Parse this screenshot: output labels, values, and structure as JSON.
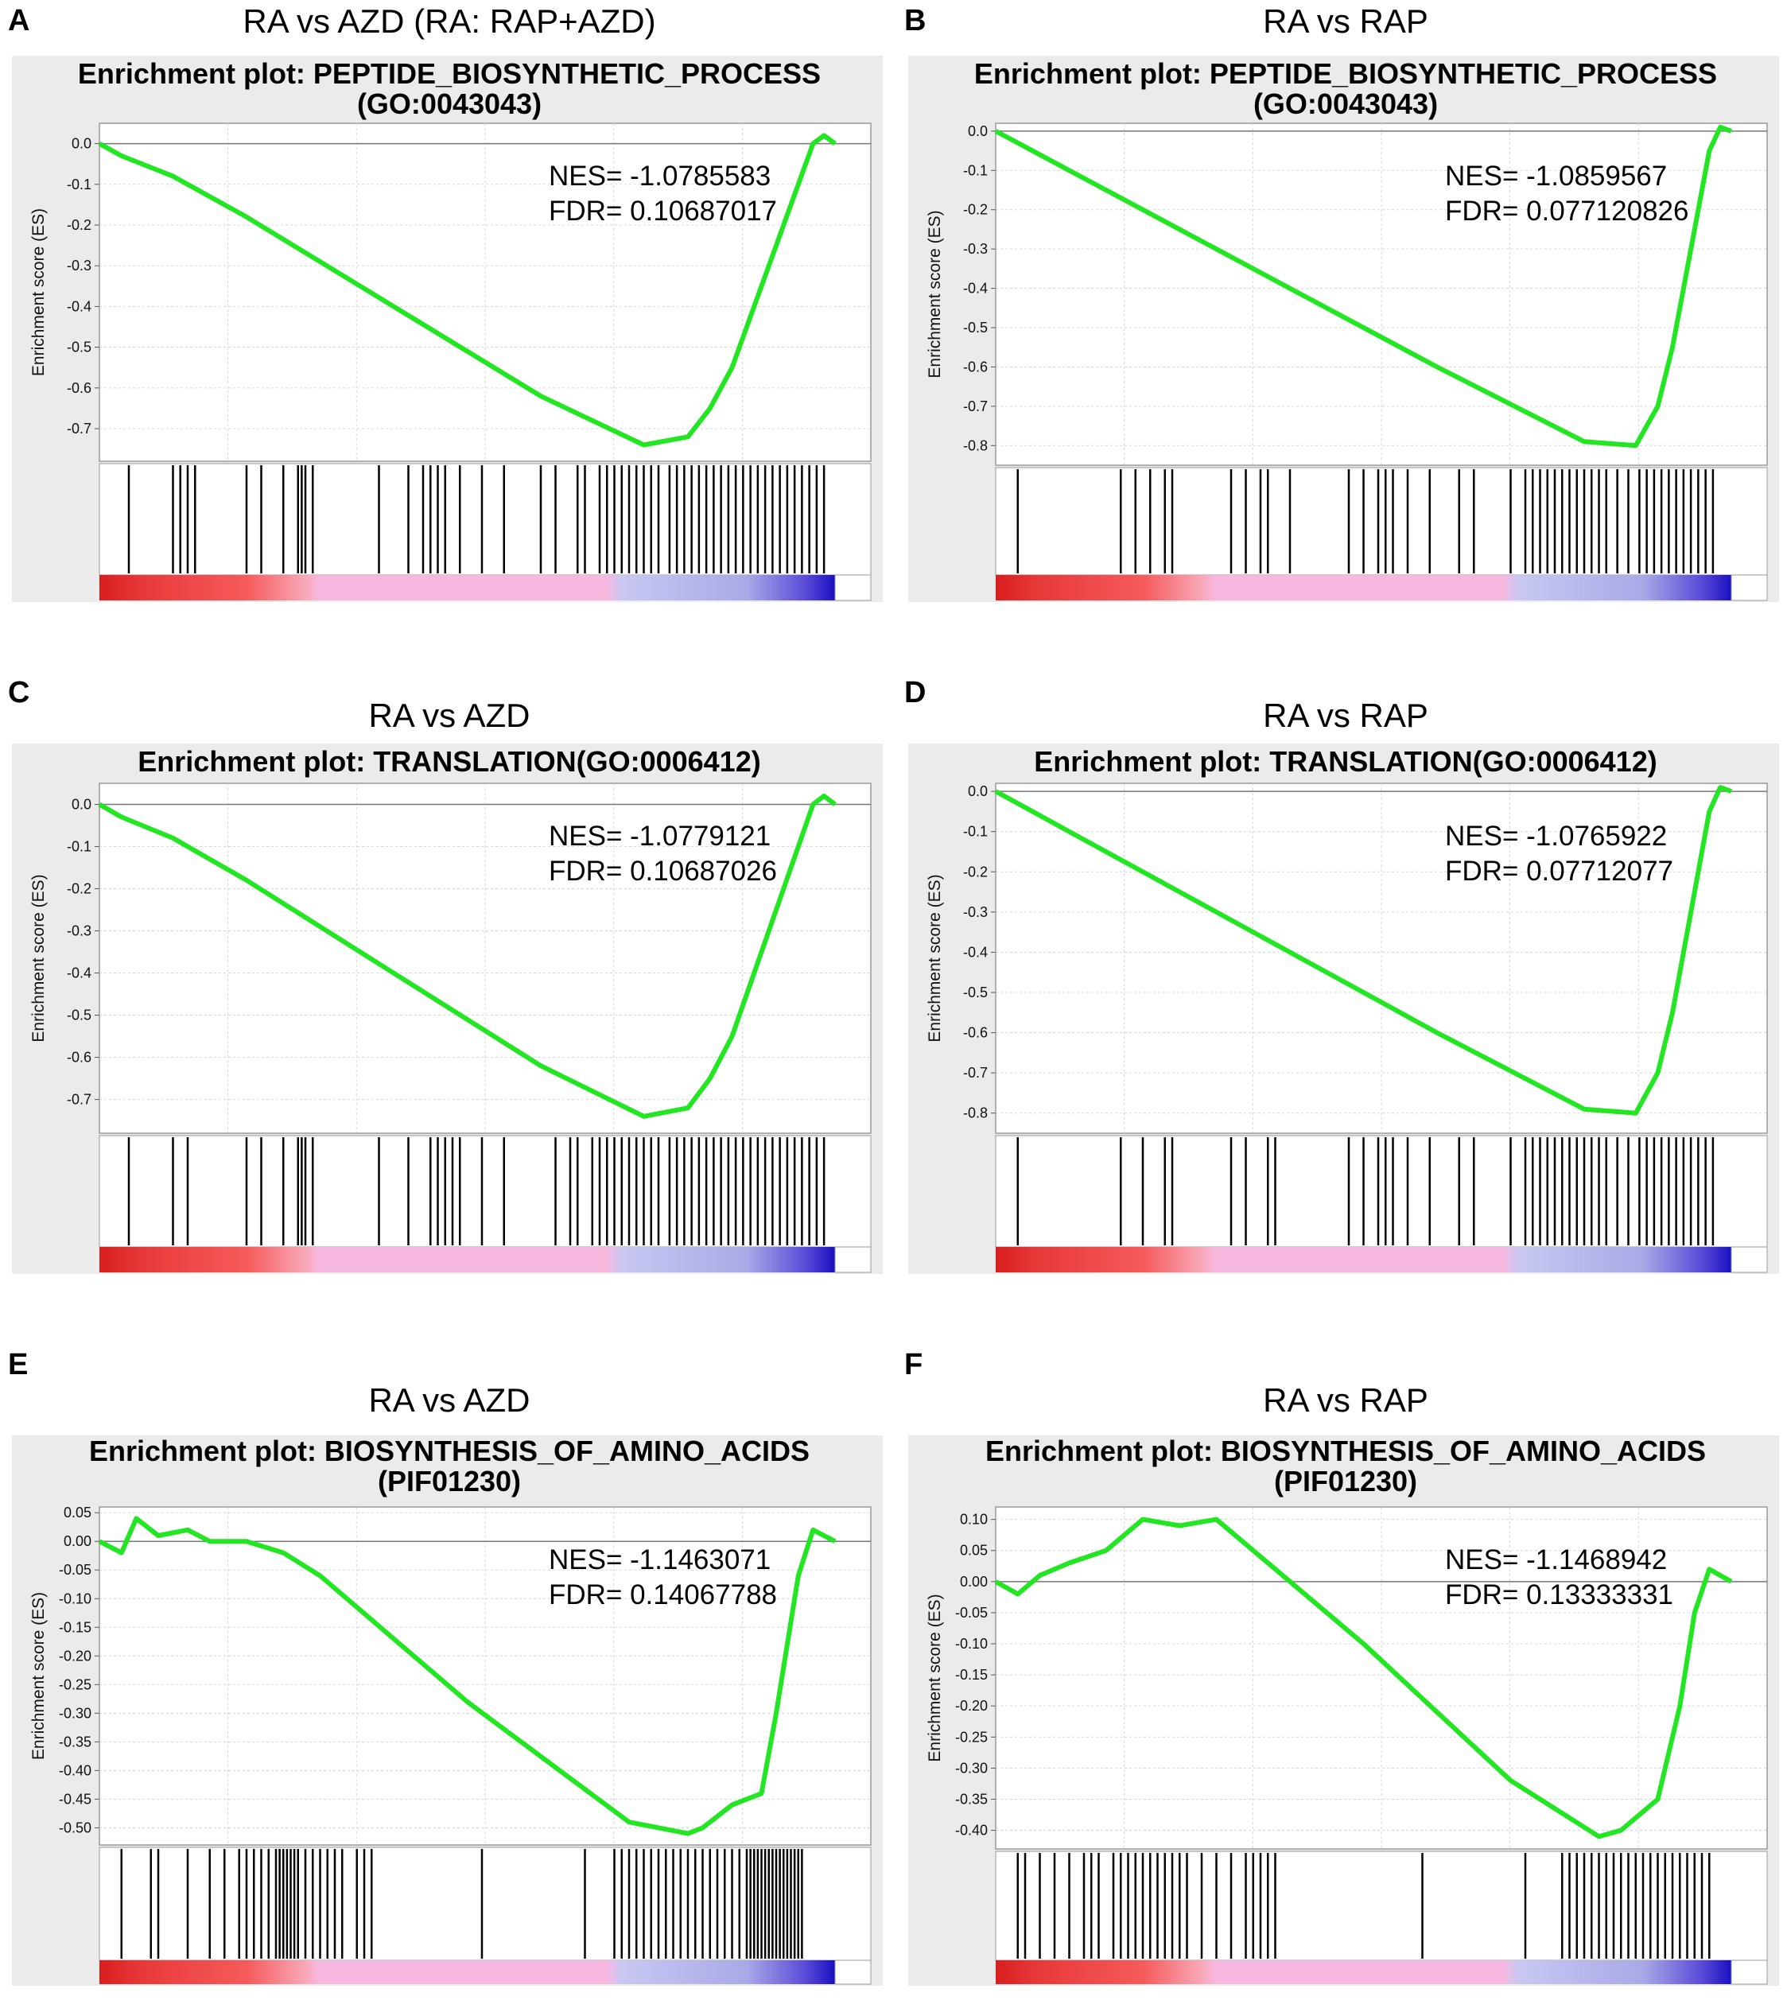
{
  "colors": {
    "curve": "#22e622",
    "bg": "#ebebeb",
    "grid": "#d7d7d7",
    "hit": "#000000"
  },
  "panels": [
    {
      "id": "A",
      "heading": "RA vs AZD  (RA: RAP+AZD)",
      "title_lines": [
        "Enrichment plot: PEPTIDE_BIOSYNTHETIC_PROCESS",
        "(GO:0043043)"
      ],
      "nes": "NES= -1.0785583",
      "fdr": "FDR= 0.10687017"
    },
    {
      "id": "B",
      "heading": "RA vs RAP",
      "title_lines": [
        "Enrichment plot: PEPTIDE_BIOSYNTHETIC_PROCESS",
        "(GO:0043043)"
      ],
      "nes": "NES= -1.0859567",
      "fdr": "FDR= 0.077120826"
    },
    {
      "id": "C",
      "heading": "RA vs AZD",
      "title_lines": [
        "Enrichment plot: TRANSLATION(GO:0006412)"
      ],
      "nes": "NES= -1.0779121",
      "fdr": "FDR= 0.10687026"
    },
    {
      "id": "D",
      "heading": "RA vs RAP",
      "title_lines": [
        "Enrichment plot: TRANSLATION(GO:0006412)"
      ],
      "nes": "NES= -1.0765922",
      "fdr": "FDR= 0.07712077"
    },
    {
      "id": "E",
      "heading": "RA vs AZD",
      "title_lines": [
        "Enrichment plot: BIOSYNTHESIS_OF_AMINO_ACIDS",
        "(PIF01230)"
      ],
      "nes": "NES= -1.1463071",
      "fdr": "FDR= 0.14067788"
    },
    {
      "id": "F",
      "heading": "RA vs RAP",
      "title_lines": [
        "Enrichment plot: BIOSYNTHESIS_OF_AMINO_ACIDS",
        "(PIF01230)"
      ],
      "nes": "NES= -1.1468942",
      "fdr": "FDR= 0.13333331"
    }
  ],
  "chart_data": [
    {
      "panel": "A",
      "type": "line",
      "ylabel": "Enrichment score (ES)",
      "yticks": [
        "0.0",
        "-0.1",
        "-0.2",
        "-0.3",
        "-0.4",
        "-0.5",
        "-0.6",
        "-0.7"
      ],
      "ylim": [
        -0.78,
        0.05
      ],
      "x": [
        0,
        0.03,
        0.1,
        0.2,
        0.4,
        0.6,
        0.74,
        0.8,
        0.83,
        0.86,
        0.9,
        0.95,
        0.97,
        0.985,
        1.0
      ],
      "y": [
        0,
        -0.03,
        -0.08,
        -0.18,
        -0.4,
        -0.62,
        -0.74,
        -0.72,
        -0.65,
        -0.55,
        -0.35,
        -0.1,
        0.0,
        0.02,
        0.0
      ],
      "hits": [
        0.04,
        0.1,
        0.11,
        0.12,
        0.13,
        0.2,
        0.22,
        0.25,
        0.27,
        0.275,
        0.28,
        0.29,
        0.38,
        0.42,
        0.44,
        0.45,
        0.46,
        0.47,
        0.49,
        0.52,
        0.55,
        0.6,
        0.62,
        0.65,
        0.66,
        0.68,
        0.69,
        0.7,
        0.71,
        0.72,
        0.73,
        0.74,
        0.75,
        0.76,
        0.775,
        0.785,
        0.795,
        0.805,
        0.815,
        0.825,
        0.835,
        0.845,
        0.855,
        0.865,
        0.875,
        0.885,
        0.895,
        0.905,
        0.915,
        0.925,
        0.935,
        0.945,
        0.955,
        0.965,
        0.975,
        0.985
      ]
    },
    {
      "panel": "B",
      "type": "line",
      "ylabel": "Enrichment score (ES)",
      "yticks": [
        "0.0",
        "-0.1",
        "-0.2",
        "-0.3",
        "-0.4",
        "-0.5",
        "-0.6",
        "-0.7",
        "-0.8"
      ],
      "ylim": [
        -0.85,
        0.02
      ],
      "x": [
        0,
        0.03,
        0.1,
        0.2,
        0.4,
        0.6,
        0.8,
        0.87,
        0.9,
        0.92,
        0.95,
        0.97,
        0.985,
        1.0
      ],
      "y": [
        0,
        -0.03,
        -0.1,
        -0.2,
        -0.4,
        -0.6,
        -0.79,
        -0.8,
        -0.7,
        -0.55,
        -0.25,
        -0.05,
        0.01,
        0.0
      ],
      "hits": [
        0.03,
        0.17,
        0.19,
        0.21,
        0.23,
        0.24,
        0.32,
        0.34,
        0.36,
        0.37,
        0.4,
        0.48,
        0.5,
        0.52,
        0.53,
        0.54,
        0.56,
        0.59,
        0.63,
        0.65,
        0.7,
        0.72,
        0.73,
        0.74,
        0.75,
        0.76,
        0.77,
        0.78,
        0.79,
        0.8,
        0.81,
        0.82,
        0.83,
        0.845,
        0.86,
        0.875,
        0.885,
        0.895,
        0.905,
        0.915,
        0.925,
        0.935,
        0.945,
        0.955,
        0.965,
        0.975
      ]
    },
    {
      "panel": "C",
      "type": "line",
      "ylabel": "Enrichment score (ES)",
      "yticks": [
        "0.0",
        "-0.1",
        "-0.2",
        "-0.3",
        "-0.4",
        "-0.5",
        "-0.6",
        "-0.7"
      ],
      "ylim": [
        -0.78,
        0.05
      ],
      "x": [
        0,
        0.03,
        0.1,
        0.2,
        0.4,
        0.6,
        0.74,
        0.8,
        0.83,
        0.86,
        0.9,
        0.95,
        0.97,
        0.985,
        1.0
      ],
      "y": [
        0,
        -0.03,
        -0.08,
        -0.18,
        -0.4,
        -0.62,
        -0.74,
        -0.72,
        -0.65,
        -0.55,
        -0.35,
        -0.1,
        0.0,
        0.02,
        0.0
      ],
      "hits": [
        0.04,
        0.1,
        0.12,
        0.2,
        0.22,
        0.25,
        0.27,
        0.275,
        0.28,
        0.29,
        0.38,
        0.42,
        0.45,
        0.46,
        0.47,
        0.48,
        0.49,
        0.52,
        0.55,
        0.62,
        0.64,
        0.65,
        0.67,
        0.68,
        0.69,
        0.7,
        0.71,
        0.72,
        0.73,
        0.74,
        0.75,
        0.76,
        0.775,
        0.785,
        0.795,
        0.805,
        0.815,
        0.825,
        0.835,
        0.845,
        0.855,
        0.865,
        0.875,
        0.885,
        0.895,
        0.905,
        0.915,
        0.925,
        0.935,
        0.945,
        0.955,
        0.965,
        0.975,
        0.985
      ]
    },
    {
      "panel": "D",
      "type": "line",
      "ylabel": "Enrichment score (ES)",
      "yticks": [
        "0.0",
        "-0.1",
        "-0.2",
        "-0.3",
        "-0.4",
        "-0.5",
        "-0.6",
        "-0.7",
        "-0.8"
      ],
      "ylim": [
        -0.85,
        0.02
      ],
      "x": [
        0,
        0.03,
        0.1,
        0.2,
        0.4,
        0.6,
        0.8,
        0.87,
        0.9,
        0.92,
        0.95,
        0.97,
        0.985,
        1.0
      ],
      "y": [
        0,
        -0.03,
        -0.1,
        -0.2,
        -0.4,
        -0.6,
        -0.79,
        -0.8,
        -0.7,
        -0.55,
        -0.25,
        -0.05,
        0.01,
        0.0
      ],
      "hits": [
        0.03,
        0.17,
        0.2,
        0.23,
        0.24,
        0.32,
        0.34,
        0.37,
        0.38,
        0.48,
        0.5,
        0.52,
        0.53,
        0.54,
        0.56,
        0.59,
        0.63,
        0.65,
        0.7,
        0.72,
        0.73,
        0.74,
        0.75,
        0.76,
        0.77,
        0.78,
        0.79,
        0.8,
        0.81,
        0.82,
        0.83,
        0.845,
        0.86,
        0.875,
        0.885,
        0.895,
        0.905,
        0.915,
        0.925,
        0.935,
        0.945,
        0.955,
        0.965,
        0.975
      ]
    },
    {
      "panel": "E",
      "type": "line",
      "ylabel": "Enrichment score (ES)",
      "yticks": [
        "0.05",
        "0.00",
        "-0.05",
        "-0.10",
        "-0.15",
        "-0.20",
        "-0.25",
        "-0.30",
        "-0.35",
        "-0.40",
        "-0.45",
        "-0.50"
      ],
      "ylim": [
        -0.53,
        0.06
      ],
      "x": [
        0,
        0.03,
        0.05,
        0.08,
        0.12,
        0.15,
        0.2,
        0.25,
        0.3,
        0.5,
        0.72,
        0.8,
        0.82,
        0.86,
        0.9,
        0.92,
        0.95,
        0.97,
        1.0
      ],
      "y": [
        0,
        -0.02,
        0.04,
        0.01,
        0.02,
        0.0,
        0.0,
        -0.02,
        -0.06,
        -0.28,
        -0.49,
        -0.51,
        -0.5,
        -0.46,
        -0.44,
        -0.3,
        -0.06,
        0.02,
        0.0
      ],
      "hits": [
        0.03,
        0.07,
        0.08,
        0.12,
        0.15,
        0.17,
        0.19,
        0.2,
        0.21,
        0.22,
        0.23,
        0.24,
        0.245,
        0.25,
        0.255,
        0.26,
        0.265,
        0.27,
        0.28,
        0.29,
        0.3,
        0.31,
        0.32,
        0.33,
        0.35,
        0.36,
        0.37,
        0.52,
        0.66,
        0.7,
        0.71,
        0.72,
        0.73,
        0.74,
        0.75,
        0.76,
        0.77,
        0.78,
        0.79,
        0.8,
        0.81,
        0.82,
        0.83,
        0.84,
        0.85,
        0.86,
        0.87,
        0.88,
        0.885,
        0.89,
        0.895,
        0.9,
        0.905,
        0.91,
        0.915,
        0.92,
        0.925,
        0.93,
        0.935,
        0.94,
        0.945,
        0.95,
        0.955
      ]
    },
    {
      "panel": "F",
      "type": "line",
      "ylabel": "Enrichment score (ES)",
      "yticks": [
        "0.10",
        "0.05",
        "0.00",
        "-0.05",
        "-0.10",
        "-0.15",
        "-0.20",
        "-0.25",
        "-0.30",
        "-0.35",
        "-0.40"
      ],
      "ylim": [
        -0.43,
        0.12
      ],
      "x": [
        0,
        0.03,
        0.06,
        0.1,
        0.15,
        0.2,
        0.25,
        0.3,
        0.35,
        0.5,
        0.7,
        0.82,
        0.85,
        0.9,
        0.93,
        0.95,
        0.97,
        0.985,
        1.0
      ],
      "y": [
        0,
        -0.02,
        0.01,
        0.03,
        0.05,
        0.1,
        0.09,
        0.1,
        0.05,
        -0.1,
        -0.32,
        -0.41,
        -0.4,
        -0.35,
        -0.2,
        -0.05,
        0.02,
        0.01,
        0.0
      ],
      "hits": [
        0.03,
        0.04,
        0.06,
        0.08,
        0.1,
        0.12,
        0.13,
        0.14,
        0.16,
        0.17,
        0.18,
        0.19,
        0.2,
        0.21,
        0.22,
        0.23,
        0.24,
        0.25,
        0.26,
        0.28,
        0.3,
        0.32,
        0.34,
        0.35,
        0.36,
        0.37,
        0.38,
        0.58,
        0.72,
        0.77,
        0.78,
        0.79,
        0.8,
        0.81,
        0.82,
        0.83,
        0.84,
        0.85,
        0.86,
        0.87,
        0.88,
        0.89,
        0.9,
        0.91,
        0.92,
        0.93,
        0.94,
        0.95,
        0.96,
        0.97
      ]
    }
  ]
}
